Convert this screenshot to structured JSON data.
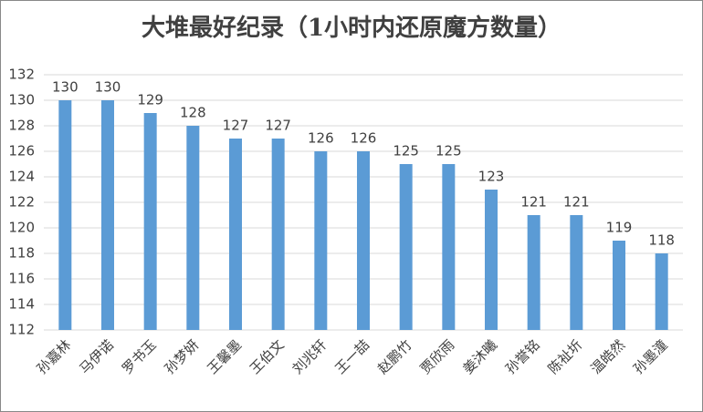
{
  "chart_data": {
    "type": "bar",
    "title": "大堆最好纪录（1小时内还原魔方数量）",
    "categories": [
      "孙嘉林",
      "马伊诺",
      "罗书玉",
      "孙梦妍",
      "王馨墨",
      "王伯文",
      "刘兆轩",
      "王一喆",
      "赵鹏竹",
      "贾欣雨",
      "姜沐曦",
      "孙誉铭",
      "陈祉圻",
      "温皓然",
      "孙墨潼"
    ],
    "values": [
      130,
      130,
      129,
      128,
      127,
      127,
      126,
      126,
      125,
      125,
      123,
      121,
      121,
      119,
      118
    ],
    "color": "#5b9bd5",
    "ylim": [
      112,
      132
    ],
    "yticks": [
      112,
      114,
      116,
      118,
      120,
      122,
      124,
      126,
      128,
      130,
      132
    ],
    "grid": true
  }
}
